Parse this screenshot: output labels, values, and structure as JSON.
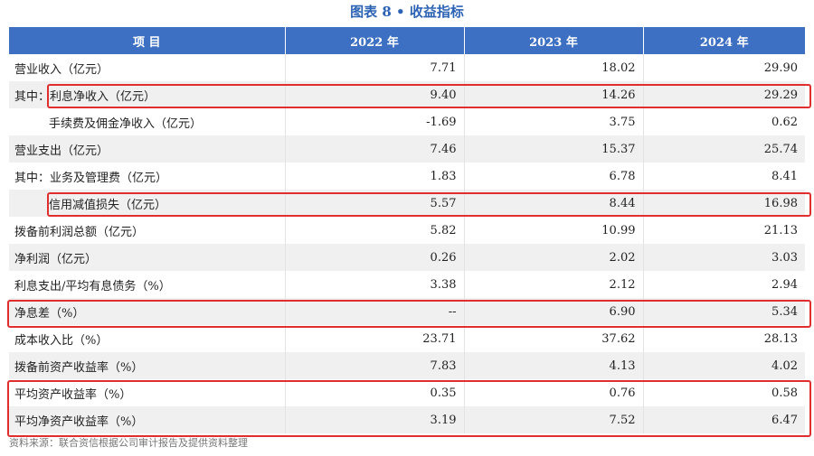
{
  "title": "图表 8 • 收益指标",
  "header": {
    "item": "项    目",
    "y2022": "2022 年",
    "y2023": "2023 年",
    "y2024": "2024 年"
  },
  "rows": [
    {
      "label": "营业收入（亿元）",
      "v2022": "7.71",
      "v2023": "18.02",
      "v2024": "29.90"
    },
    {
      "prefix": "其中：",
      "label": "利息净收入（亿元）",
      "v2022": "9.40",
      "v2023": "14.26",
      "v2024": "29.29"
    },
    {
      "label": "手续费及佣金净收入（亿元）",
      "v2022": "-1.69",
      "v2023": "3.75",
      "v2024": "0.62"
    },
    {
      "label": "营业支出（亿元）",
      "v2022": "7.46",
      "v2023": "15.37",
      "v2024": "25.74"
    },
    {
      "label": "其中：业务及管理费（亿元）",
      "v2022": "1.83",
      "v2023": "6.78",
      "v2024": "8.41"
    },
    {
      "label": "信用减值损失（亿元）",
      "v2022": "5.57",
      "v2023": "8.44",
      "v2024": "16.98"
    },
    {
      "label": "拨备前利润总额（亿元）",
      "v2022": "5.82",
      "v2023": "10.99",
      "v2024": "21.13"
    },
    {
      "label": "净利润（亿元）",
      "v2022": "0.26",
      "v2023": "2.02",
      "v2024": "3.03"
    },
    {
      "label": "利息支出/平均有息债务（%）",
      "v2022": "3.38",
      "v2023": "2.12",
      "v2024": "2.94"
    },
    {
      "label": "净息差（%）",
      "v2022": "--",
      "v2023": "6.90",
      "v2024": "5.34"
    },
    {
      "label": "成本收入比（%）",
      "v2022": "23.71",
      "v2023": "37.62",
      "v2024": "28.13"
    },
    {
      "label": "拨备前资产收益率（%）",
      "v2022": "7.83",
      "v2023": "4.13",
      "v2024": "4.02"
    },
    {
      "label": "平均资产收益率（%）",
      "v2022": "0.35",
      "v2023": "0.76",
      "v2024": "0.58"
    },
    {
      "label": "平均净资产收益率（%）",
      "v2022": "3.19",
      "v2023": "7.52",
      "v2024": "6.47"
    }
  ],
  "source": "资料来源：联合资信根据公司审计报告及提供资料整理",
  "colors": {
    "header_bg": "#3d6fc2",
    "title": "#2c62b4",
    "highlight": "#e02d2d",
    "alt_row": "#f0f0f0"
  }
}
